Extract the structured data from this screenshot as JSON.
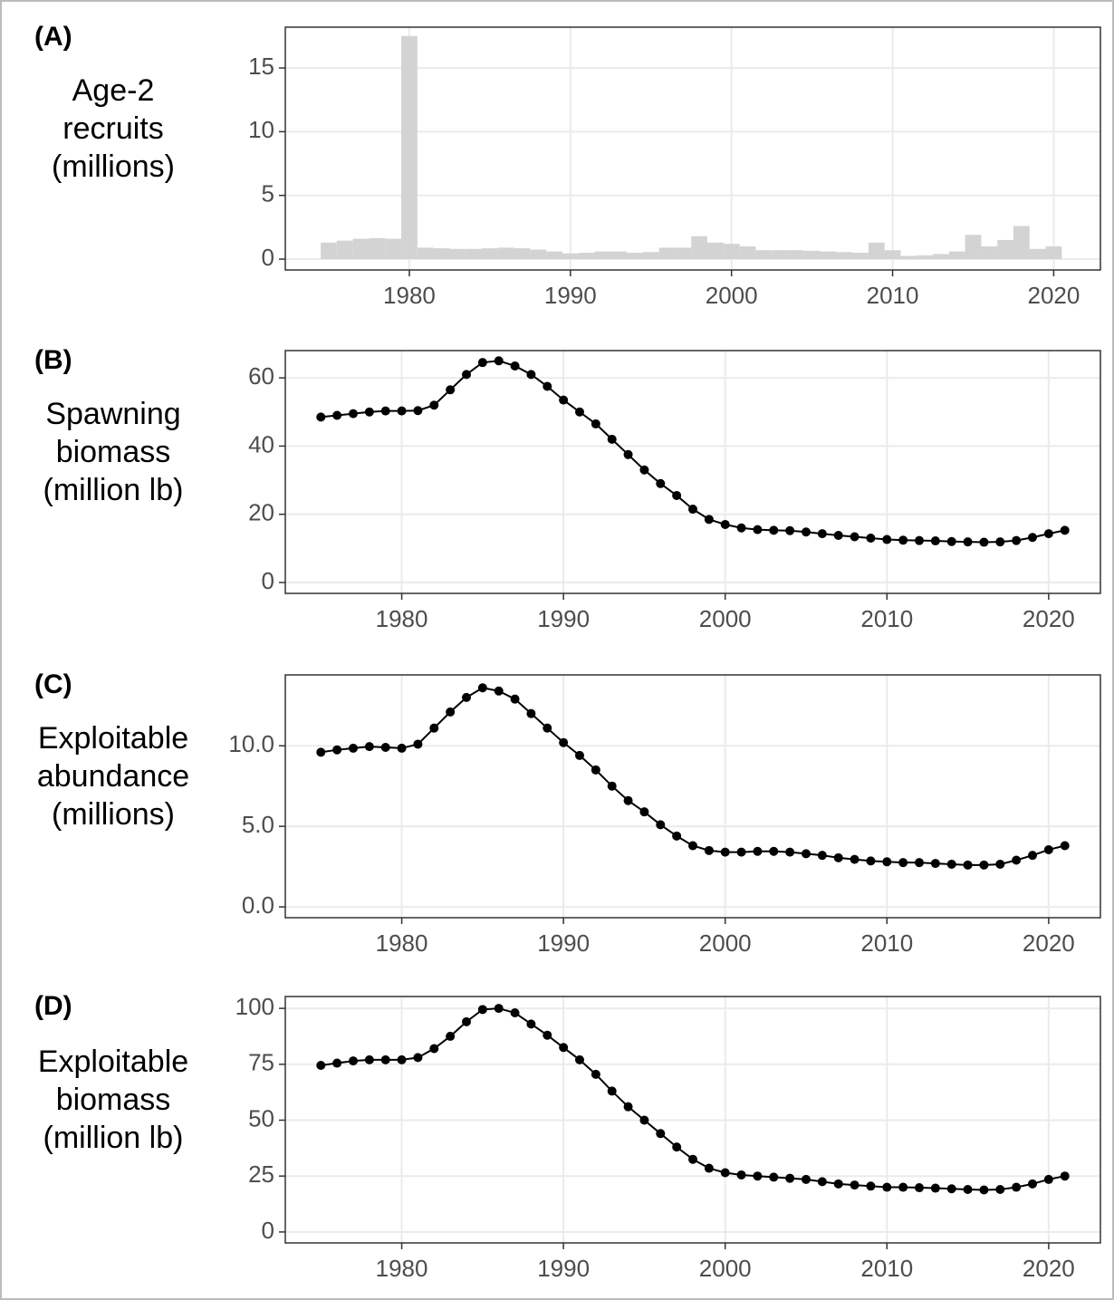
{
  "chart_data": [
    {
      "type": "bar",
      "panel_label": "(A)",
      "ylabel": [
        "Age-2",
        "recruits",
        "(millions)"
      ],
      "x": [
        1975,
        1976,
        1977,
        1978,
        1979,
        1980,
        1981,
        1982,
        1983,
        1984,
        1985,
        1986,
        1987,
        1988,
        1989,
        1990,
        1991,
        1992,
        1993,
        1994,
        1995,
        1996,
        1997,
        1998,
        1999,
        2000,
        2001,
        2002,
        2003,
        2004,
        2005,
        2006,
        2007,
        2008,
        2009,
        2010,
        2011,
        2012,
        2013,
        2014,
        2015,
        2016,
        2017,
        2018,
        2019,
        2020
      ],
      "values": [
        1.3,
        1.45,
        1.6,
        1.65,
        1.6,
        17.5,
        0.9,
        0.85,
        0.8,
        0.8,
        0.85,
        0.9,
        0.85,
        0.75,
        0.6,
        0.45,
        0.5,
        0.6,
        0.6,
        0.5,
        0.55,
        0.9,
        0.9,
        1.8,
        1.3,
        1.2,
        1.0,
        0.7,
        0.7,
        0.7,
        0.65,
        0.6,
        0.55,
        0.5,
        1.3,
        0.7,
        0.25,
        0.3,
        0.4,
        0.6,
        1.9,
        1.0,
        1.5,
        2.6,
        0.8,
        1.0
      ],
      "color": "#d3d3d3",
      "xlim": [
        1972.3,
        2022.9
      ],
      "xticks": [
        1980,
        1990,
        2000,
        2010,
        2020
      ],
      "ylim": [
        -0.85,
        18.2
      ],
      "yticks": [
        0,
        5,
        10,
        15
      ],
      "grid": true
    },
    {
      "type": "line",
      "panel_label": "(B)",
      "ylabel": [
        "Spawning",
        "biomass",
        "(million lb)"
      ],
      "x": [
        1975,
        1976,
        1977,
        1978,
        1979,
        1980,
        1981,
        1982,
        1983,
        1984,
        1985,
        1986,
        1987,
        1988,
        1989,
        1990,
        1991,
        1992,
        1993,
        1994,
        1995,
        1996,
        1997,
        1998,
        1999,
        2000,
        2001,
        2002,
        2003,
        2004,
        2005,
        2006,
        2007,
        2008,
        2009,
        2010,
        2011,
        2012,
        2013,
        2014,
        2015,
        2016,
        2017,
        2018,
        2019,
        2020,
        2021
      ],
      "values": [
        48.5,
        49,
        49.5,
        50,
        50.3,
        50.3,
        50.4,
        52,
        56.5,
        61,
        64.5,
        65,
        63.5,
        61,
        57.5,
        53.5,
        50,
        46.5,
        42,
        37.5,
        33,
        29,
        25.5,
        21.5,
        18.5,
        17,
        16,
        15.5,
        15.3,
        15.2,
        14.8,
        14.3,
        13.8,
        13.4,
        13,
        12.6,
        12.4,
        12.3,
        12.2,
        12,
        11.9,
        11.8,
        11.9,
        12.3,
        13.2,
        14.3,
        15.3
      ],
      "color": "#000000",
      "xlim": [
        1972.8,
        2023.2
      ],
      "xticks": [
        1980,
        1990,
        2000,
        2010,
        2020
      ],
      "ylim": [
        -3.2,
        68
      ],
      "yticks": [
        0,
        20,
        40,
        60
      ],
      "grid": true
    },
    {
      "type": "line",
      "panel_label": "(C)",
      "ylabel": [
        "Exploitable",
        "abundance",
        "(millions)"
      ],
      "x": [
        1975,
        1976,
        1977,
        1978,
        1979,
        1980,
        1981,
        1982,
        1983,
        1984,
        1985,
        1986,
        1987,
        1988,
        1989,
        1990,
        1991,
        1992,
        1993,
        1994,
        1995,
        1996,
        1997,
        1998,
        1999,
        2000,
        2001,
        2002,
        2003,
        2004,
        2005,
        2006,
        2007,
        2008,
        2009,
        2010,
        2011,
        2012,
        2013,
        2014,
        2015,
        2016,
        2017,
        2018,
        2019,
        2020,
        2021
      ],
      "values": [
        9.6,
        9.75,
        9.85,
        9.95,
        9.9,
        9.85,
        10.1,
        11.1,
        12.1,
        13.0,
        13.6,
        13.4,
        12.9,
        12.0,
        11.1,
        10.2,
        9.4,
        8.5,
        7.5,
        6.6,
        5.9,
        5.1,
        4.4,
        3.8,
        3.5,
        3.4,
        3.4,
        3.45,
        3.45,
        3.4,
        3.3,
        3.2,
        3.05,
        2.95,
        2.85,
        2.8,
        2.75,
        2.75,
        2.7,
        2.65,
        2.6,
        2.6,
        2.65,
        2.9,
        3.2,
        3.55,
        3.8
      ],
      "color": "#000000",
      "xlim": [
        1972.8,
        2023.2
      ],
      "xticks": [
        1980,
        1990,
        2000,
        2010,
        2020
      ],
      "ylim": [
        -0.67,
        14.4
      ],
      "yticks": [
        {
          "value": 0,
          "label": "0.0"
        },
        {
          "value": 5,
          "label": "5.0"
        },
        {
          "value": 10,
          "label": "10.0"
        }
      ],
      "grid": true
    },
    {
      "type": "line",
      "panel_label": "(D)",
      "ylabel": [
        "Exploitable",
        "biomass",
        "(million lb)"
      ],
      "x": [
        1975,
        1976,
        1977,
        1978,
        1979,
        1980,
        1981,
        1982,
        1983,
        1984,
        1985,
        1986,
        1987,
        1988,
        1989,
        1990,
        1991,
        1992,
        1993,
        1994,
        1995,
        1996,
        1997,
        1998,
        1999,
        2000,
        2001,
        2002,
        2003,
        2004,
        2005,
        2006,
        2007,
        2008,
        2009,
        2010,
        2011,
        2012,
        2013,
        2014,
        2015,
        2016,
        2017,
        2018,
        2019,
        2020,
        2021
      ],
      "values": [
        74.5,
        75.5,
        76.5,
        77,
        77,
        77,
        78,
        82,
        87.5,
        94,
        99.5,
        100,
        98,
        93,
        88,
        82.5,
        77,
        70.5,
        63,
        56,
        50,
        44,
        38,
        32.5,
        28.5,
        26.5,
        25.5,
        25,
        24.5,
        24,
        23.5,
        22.5,
        21.5,
        21,
        20.5,
        20,
        20,
        19.8,
        19.6,
        19.3,
        19,
        18.8,
        19,
        20,
        21.5,
        23.5,
        25
      ],
      "color": "#000000",
      "xlim": [
        1972.8,
        2023.2
      ],
      "xticks": [
        1980,
        1990,
        2000,
        2010,
        2020
      ],
      "ylim": [
        -4.9,
        105.3
      ],
      "yticks": [
        0,
        25,
        50,
        75,
        100
      ],
      "grid": true
    }
  ]
}
